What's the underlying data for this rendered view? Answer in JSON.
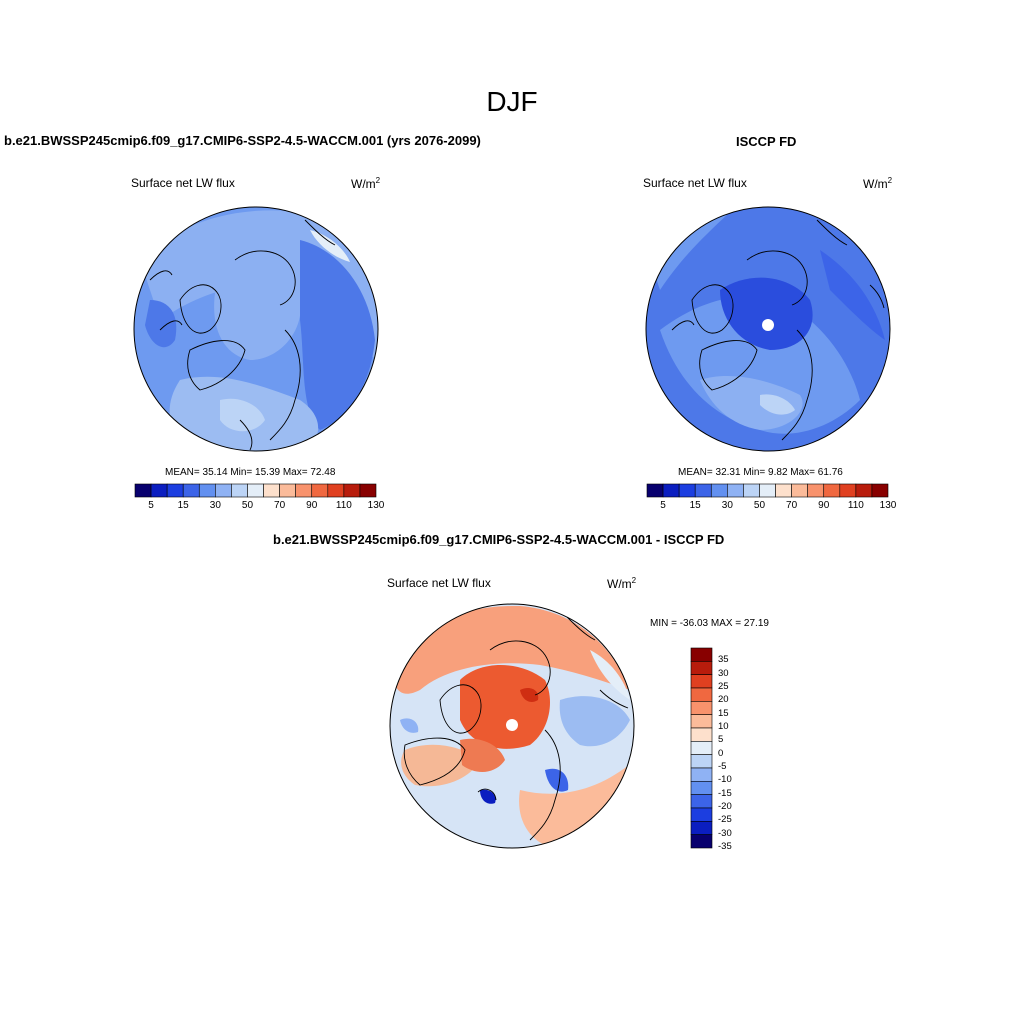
{
  "page": {
    "season": "DJF"
  },
  "panel_model": {
    "case_title": "b.e21.BWSSP245cmip6.f09_g17.CMIP6-SSP2-4.5-WACCM.001 (yrs 2076-2099)",
    "variable": "Surface net LW flux",
    "units": "W/m",
    "units_sup": "2",
    "stats": "MEAN=  35.14  Min=  15.39  Max=  72.48",
    "colorbar_ticks": [
      "5",
      "15",
      "30",
      "50",
      "70",
      "90",
      "110",
      "130"
    ]
  },
  "panel_obs": {
    "case_title": "ISCCP FD",
    "variable": "Surface net LW flux",
    "units": "W/m",
    "units_sup": "2",
    "stats": "MEAN=  32.31  Min=   9.82  Max=  61.76",
    "colorbar_ticks": [
      "5",
      "15",
      "30",
      "50",
      "70",
      "90",
      "110",
      "130"
    ]
  },
  "panel_diff": {
    "case_title": "b.e21.BWSSP245cmip6.f09_g17.CMIP6-SSP2-4.5-WACCM.001 - ISCCP FD",
    "variable": "Surface net LW flux",
    "units": "W/m",
    "units_sup": "2",
    "stats": "MIN = -36.03 MAX =  27.19",
    "colorbar_ticks": [
      "35",
      "30",
      "25",
      "20",
      "15",
      "10",
      "5",
      "0",
      "-5",
      "-10",
      "-15",
      "-20",
      "-25",
      "-30",
      "-35"
    ]
  },
  "colors": {
    "abs_scale": [
      "#08006e",
      "#0b1ec0",
      "#1c3ee0",
      "#3c64e8",
      "#6290f0",
      "#8fb2f4",
      "#bcd4f6",
      "#e4eef8",
      "#fde0cc",
      "#fbbb9a",
      "#f8926c",
      "#f06840",
      "#e04020",
      "#b81c0c",
      "#880000"
    ],
    "diff_scale": [
      "#08006e",
      "#0b1ec0",
      "#1c3ee0",
      "#3c64e8",
      "#6290f0",
      "#8fb2f4",
      "#bcd4f6",
      "#e4eef8",
      "#fde0cc",
      "#fbbb9a",
      "#f8926c",
      "#f06840",
      "#e04020",
      "#b81c0c",
      "#880000"
    ],
    "coast": "#000000"
  }
}
